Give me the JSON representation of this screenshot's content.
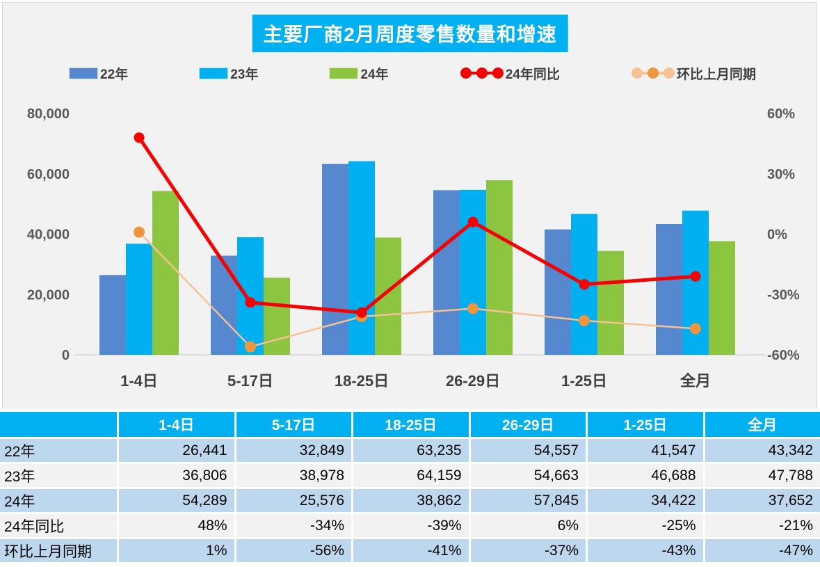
{
  "colors": {
    "title_bg": "#00B0F0",
    "chart_bg": "#F2F2F2",
    "bar_22": "#5588CE",
    "bar_23": "#00AFF0",
    "bar_24": "#8CC540",
    "line_yoy": "#F80000",
    "line_mom": "#F6C193",
    "marker_mom": "#F0953F",
    "axis_text": "#595959",
    "baseline": "#D6D6D6",
    "table_header_bg": "#00B0F0",
    "row_blue": "#BDD7EE",
    "row_gray": "#F2F2F2"
  },
  "chart_data": {
    "type": "combo",
    "title": "主要厂商2月周度零售数量和增速",
    "categories": [
      "1-4日",
      "5-17日",
      "18-25日",
      "26-29日",
      "1-25日",
      "全月"
    ],
    "bar_series": [
      {
        "name": "22年",
        "color_key": "bar_22",
        "values": [
          26441,
          32849,
          63235,
          54557,
          41547,
          43342
        ]
      },
      {
        "name": "23年",
        "color_key": "bar_23",
        "values": [
          36806,
          38978,
          64159,
          54663,
          46688,
          47788
        ]
      },
      {
        "name": "24年",
        "color_key": "bar_24",
        "values": [
          54289,
          25576,
          38862,
          57845,
          34422,
          37652
        ]
      }
    ],
    "line_series": [
      {
        "name": "24年同比",
        "line_key": "line_yoy",
        "marker_key": "line_yoy",
        "values_pct": [
          48,
          -34,
          -39,
          6,
          -25,
          -21
        ]
      },
      {
        "name": "环比上月同期",
        "line_key": "line_mom",
        "marker_key": "marker_mom",
        "values_pct": [
          1,
          -56,
          -41,
          -37,
          -43,
          -47
        ]
      }
    ],
    "left_axis": {
      "min": 0,
      "max": 80000,
      "ticks": [
        {
          "label": "0",
          "value": 0
        },
        {
          "label": "20,000",
          "value": 20000
        },
        {
          "label": "40,000",
          "value": 40000
        },
        {
          "label": "60,000",
          "value": 60000
        },
        {
          "label": "80,000",
          "value": 80000
        }
      ]
    },
    "right_axis": {
      "min": -60,
      "max": 60,
      "ticks": [
        {
          "label": "-60%",
          "value": -60
        },
        {
          "label": "-30%",
          "value": -30
        },
        {
          "label": "0%",
          "value": 0
        },
        {
          "label": "30%",
          "value": 30
        },
        {
          "label": "60%",
          "value": 60
        }
      ]
    },
    "grid": "off",
    "legend_position": "top"
  },
  "legend": [
    {
      "label": "22年",
      "type": "bar",
      "color_key": "bar_22"
    },
    {
      "label": "23年",
      "type": "bar",
      "color_key": "bar_23"
    },
    {
      "label": "24年",
      "type": "bar",
      "color_key": "bar_24"
    },
    {
      "label": "24年同比",
      "type": "line",
      "line_key": "line_yoy",
      "marker_keys": [
        "line_yoy",
        "line_yoy",
        "line_yoy"
      ]
    },
    {
      "label": "环比上月同期",
      "type": "line",
      "line_key": "line_mom",
      "marker_keys": [
        "line_mom",
        "marker_mom",
        "line_mom"
      ]
    }
  ],
  "table": {
    "headers": [
      "",
      "1-4日",
      "5-17日",
      "18-25日",
      "26-29日",
      "1-25日",
      "全月"
    ],
    "rows": [
      {
        "label": "22年",
        "values": [
          "26,441",
          "32,849",
          "63,235",
          "54,557",
          "41,547",
          "43,342"
        ]
      },
      {
        "label": "23年",
        "values": [
          "36,806",
          "38,978",
          "64,159",
          "54,663",
          "46,688",
          "47,788"
        ]
      },
      {
        "label": "24年",
        "values": [
          "54,289",
          "25,576",
          "38,862",
          "57,845",
          "34,422",
          "37,652"
        ]
      },
      {
        "label": "24年同比",
        "values": [
          "48%",
          "-34%",
          "-39%",
          "6%",
          "-25%",
          "-21%"
        ]
      },
      {
        "label": "环比上月同期",
        "values": [
          "1%",
          "-56%",
          "-41%",
          "-37%",
          "-43%",
          "-47%"
        ]
      }
    ]
  }
}
